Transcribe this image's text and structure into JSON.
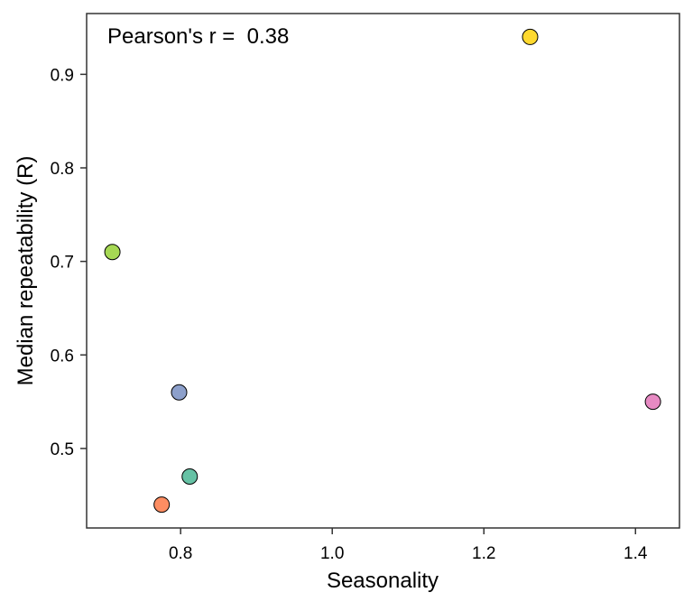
{
  "chart_data": {
    "type": "scatter",
    "title": "",
    "xlabel": "Seasonality",
    "ylabel": "Median repeatability (R)",
    "xlim": [
      0.676,
      1.458
    ],
    "ylim": [
      0.415,
      0.965
    ],
    "xticks": [
      0.8,
      1.0,
      1.2,
      1.4
    ],
    "xtick_labels": [
      "0.8",
      "1.0",
      "1.2",
      "1.4"
    ],
    "yticks": [
      0.5,
      0.6,
      0.7,
      0.8,
      0.9
    ],
    "ytick_labels": [
      "0.5",
      "0.6",
      "0.7",
      "0.8",
      "0.9"
    ],
    "grid": false,
    "annotation": "Pearson's r =  0.38",
    "points": [
      {
        "x": 1.261,
        "y": 0.94,
        "color": "#FFD92F"
      },
      {
        "x": 0.71,
        "y": 0.71,
        "color": "#A6D854"
      },
      {
        "x": 0.798,
        "y": 0.56,
        "color": "#8DA0CB"
      },
      {
        "x": 0.812,
        "y": 0.47,
        "color": "#66C2A5"
      },
      {
        "x": 0.775,
        "y": 0.44,
        "color": "#FC8D62"
      },
      {
        "x": 1.423,
        "y": 0.55,
        "color": "#E78AC3"
      }
    ]
  }
}
